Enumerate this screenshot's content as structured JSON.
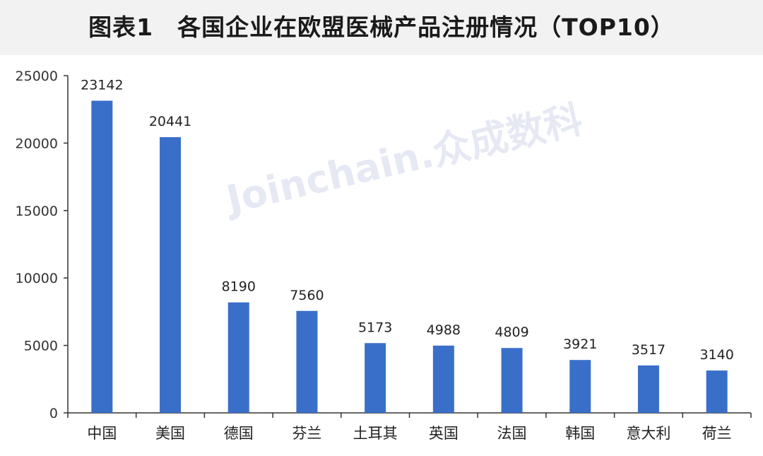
{
  "title": "图表1　各国企业在欧盟医械产品注册情况（TOP10）",
  "watermark": "Joinchain.众成数科",
  "colors": {
    "bar": "#3a6fc9",
    "axis": "#333333",
    "title_bg": "#f2f2f2"
  },
  "chart_data": {
    "type": "bar",
    "title": "图表1　各国企业在欧盟医械产品注册情况（TOP10）",
    "xlabel": "",
    "ylabel": "",
    "categories": [
      "中国",
      "美国",
      "德国",
      "芬兰",
      "土耳其",
      "英国",
      "法国",
      "韩国",
      "意大利",
      "荷兰"
    ],
    "values": [
      23142,
      20441,
      8190,
      7560,
      5173,
      4988,
      4809,
      3921,
      3517,
      3140
    ],
    "yticks": [
      0,
      5000,
      10000,
      15000,
      20000,
      25000
    ],
    "ylim": [
      0,
      25000
    ],
    "data_labels": true,
    "grid": false,
    "legend": "none"
  }
}
